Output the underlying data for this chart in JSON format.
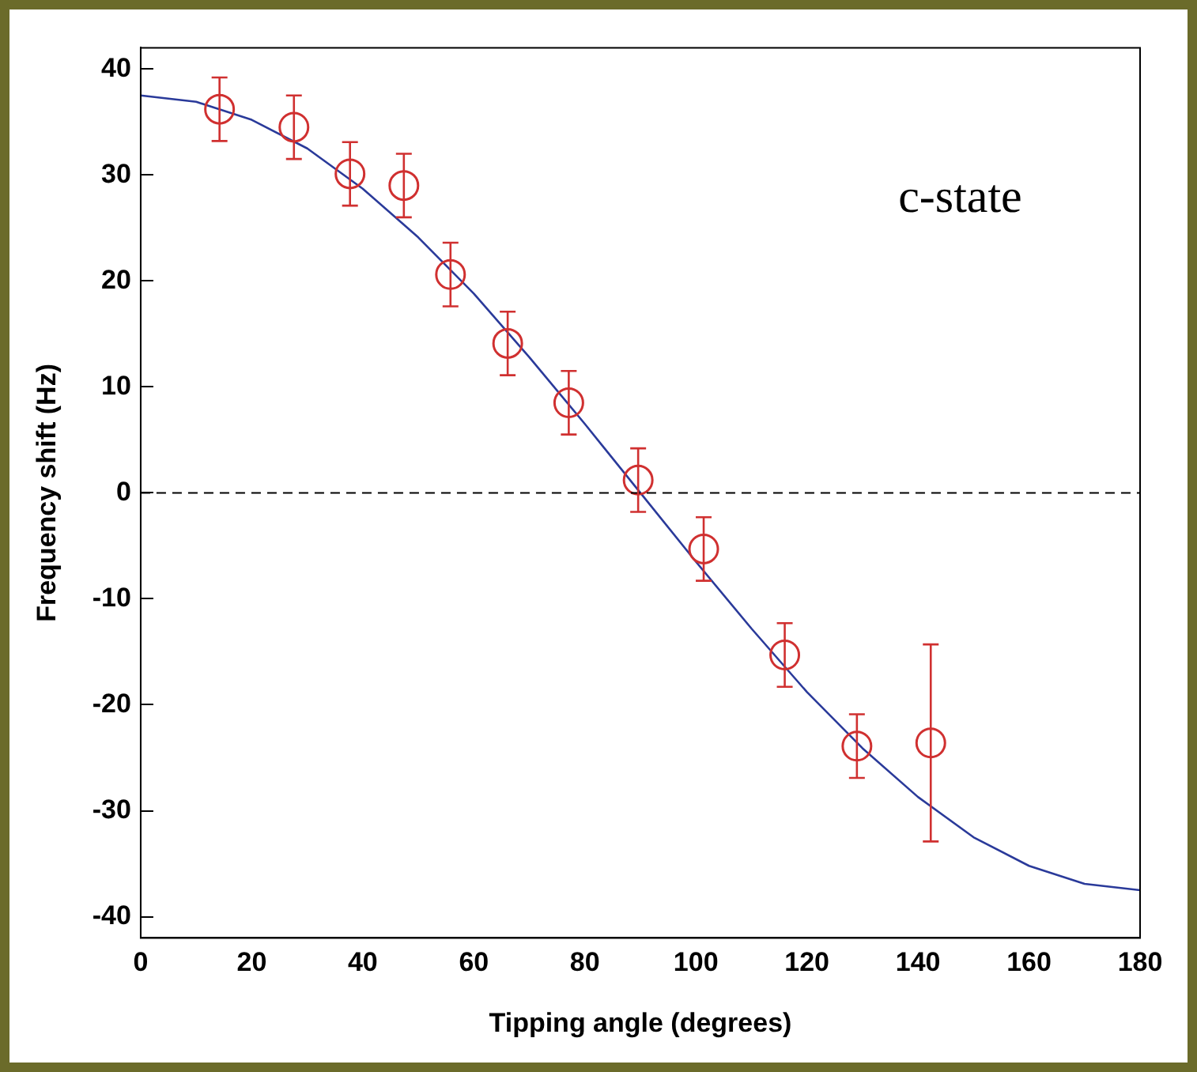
{
  "chart_data": {
    "type": "scatter",
    "xlabel": "Tipping angle (degrees)",
    "ylabel": "Frequency shift (Hz)",
    "annotations": [
      "c-state"
    ],
    "xlim": [
      0,
      180
    ],
    "xticks": [
      0,
      20,
      40,
      60,
      80,
      100,
      120,
      140,
      160,
      180
    ],
    "ylim": [
      -42,
      42
    ],
    "yticks": [
      -40,
      -30,
      -20,
      -10,
      0,
      10,
      20,
      30,
      40
    ],
    "grid": false,
    "legend": false,
    "marker": "circle",
    "ref_lines": [
      {
        "axis": "y",
        "value": 0,
        "color": "#000000",
        "line_style": "dashed"
      }
    ],
    "series": [
      {
        "color": "#d03030",
        "x": [
          14.2,
          27.6,
          37.7,
          47.4,
          55.8,
          66.1,
          77.1,
          89.6,
          101.4,
          116,
          129,
          142.3
        ],
        "values": [
          36.2,
          34.5,
          30.1,
          29,
          20.6,
          14.1,
          8.5,
          1.2,
          -5.3,
          -15.3,
          -23.9,
          -23.6
        ],
        "errors": [
          3,
          3,
          3,
          3,
          3,
          3,
          3,
          3,
          3,
          3,
          3,
          9.3
        ]
      },
      {
        "type": "line",
        "color": "#2a3a9a",
        "marker": "none",
        "x": [
          0,
          10,
          20,
          30,
          40,
          50,
          60,
          70,
          80,
          90,
          100,
          110,
          120,
          130,
          140,
          150,
          160,
          170,
          180
        ],
        "values": [
          37.5,
          36.9,
          35.2,
          32.5,
          28.7,
          24.1,
          18.8,
          12.8,
          6.5,
          0,
          -6.5,
          -12.8,
          -18.8,
          -24.1,
          -28.7,
          -32.5,
          -35.2,
          -36.9,
          -37.5
        ]
      }
    ]
  }
}
